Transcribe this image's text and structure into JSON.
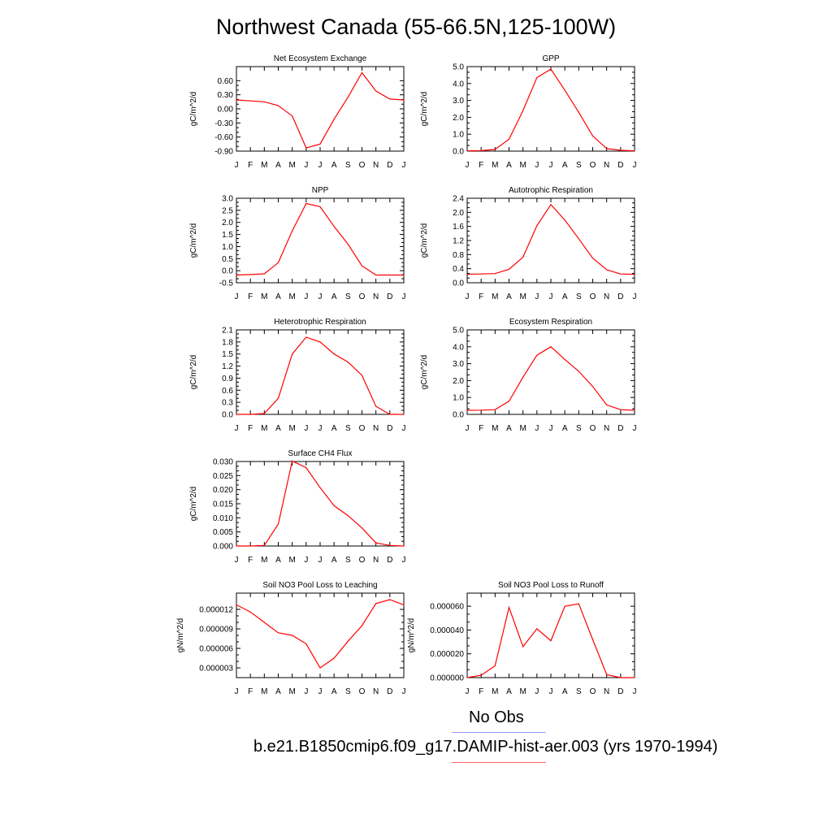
{
  "page": {
    "title": "Northwest Canada (55-66.5N,125-100W)"
  },
  "legend": {
    "obs_label": "No Obs",
    "model_label": "b.e21.B1850cmip6.f09_g17.DAMIP-hist-aer.003 (yrs 1970-1994)",
    "obs_color": "#9999ff",
    "model_color": "#ff6666"
  },
  "colors": {
    "series": "#ff0000",
    "axis": "#000000"
  },
  "chart_data": [
    {
      "type": "line",
      "title": "Net Ecosystem Exchange",
      "ylabel": "gC/m^2/d",
      "categories": [
        "J",
        "F",
        "M",
        "A",
        "M",
        "J",
        "J",
        "A",
        "S",
        "O",
        "N",
        "D",
        "J"
      ],
      "ylim": [
        -0.9,
        0.9
      ],
      "yticks": [
        "0.60",
        "0.30",
        "0.00",
        "-0.30",
        "-0.60",
        "-0.90"
      ],
      "ytick_values": [
        0.6,
        0.3,
        0.0,
        -0.3,
        -0.6,
        -0.9
      ],
      "values": [
        0.19,
        0.17,
        0.15,
        0.07,
        -0.15,
        -0.83,
        -0.75,
        -0.22,
        0.25,
        0.77,
        0.38,
        0.21,
        0.19
      ]
    },
    {
      "type": "line",
      "title": "GPP",
      "ylabel": "gC/m^2/d",
      "categories": [
        "J",
        "F",
        "M",
        "A",
        "M",
        "J",
        "J",
        "A",
        "S",
        "O",
        "N",
        "D",
        "J"
      ],
      "ylim": [
        0,
        5
      ],
      "yticks": [
        "5.0",
        "4.0",
        "3.0",
        "2.0",
        "1.0",
        "0.0"
      ],
      "ytick_values": [
        5,
        4,
        3,
        2,
        1,
        0
      ],
      "values": [
        0.02,
        0.03,
        0.1,
        0.7,
        2.4,
        4.35,
        4.85,
        3.6,
        2.3,
        0.9,
        0.15,
        0.05,
        0.02
      ]
    },
    {
      "type": "line",
      "title": "NPP",
      "ylabel": "gC/m^2/d",
      "categories": [
        "J",
        "F",
        "M",
        "A",
        "M",
        "J",
        "J",
        "A",
        "S",
        "O",
        "N",
        "D",
        "J"
      ],
      "ylim": [
        -0.5,
        3.0
      ],
      "yticks": [
        "3.0",
        "2.5",
        "2.0",
        "1.5",
        "1.0",
        "0.5",
        "0.0",
        "-0.5"
      ],
      "ytick_values": [
        3,
        2.5,
        2,
        1.5,
        1,
        0.5,
        0,
        -0.5
      ],
      "values": [
        -0.18,
        -0.16,
        -0.13,
        0.33,
        1.65,
        2.78,
        2.65,
        1.83,
        1.1,
        0.2,
        -0.18,
        -0.18,
        -0.18
      ]
    },
    {
      "type": "line",
      "title": "Autotrophic Respiration",
      "ylabel": "gC/m^2/d",
      "categories": [
        "J",
        "F",
        "M",
        "A",
        "M",
        "J",
        "J",
        "A",
        "S",
        "O",
        "N",
        "D",
        "J"
      ],
      "ylim": [
        0,
        2.4
      ],
      "yticks": [
        "2.4",
        "2.0",
        "1.6",
        "1.2",
        "0.8",
        "0.4",
        "0.0"
      ],
      "ytick_values": [
        2.4,
        2.0,
        1.6,
        1.2,
        0.8,
        0.4,
        0.0
      ],
      "values": [
        0.24,
        0.25,
        0.26,
        0.38,
        0.73,
        1.62,
        2.22,
        1.78,
        1.25,
        0.7,
        0.37,
        0.25,
        0.24
      ]
    },
    {
      "type": "line",
      "title": "Heterotrophic Respiration",
      "ylabel": "gC/m^2/d",
      "categories": [
        "J",
        "F",
        "M",
        "A",
        "M",
        "J",
        "J",
        "A",
        "S",
        "O",
        "N",
        "D",
        "J"
      ],
      "ylim": [
        0,
        2.1
      ],
      "yticks": [
        "2.1",
        "1.8",
        "1.5",
        "1.2",
        "0.9",
        "0.6",
        "0.3",
        "0.0"
      ],
      "ytick_values": [
        2.1,
        1.8,
        1.5,
        1.2,
        0.9,
        0.6,
        0.3,
        0.0
      ],
      "values": [
        0.0,
        0.0,
        0.02,
        0.4,
        1.5,
        1.92,
        1.8,
        1.5,
        1.3,
        0.97,
        0.2,
        0.0,
        0.0
      ]
    },
    {
      "type": "line",
      "title": "Ecosystem Respiration",
      "ylabel": "gC/m^2/d",
      "categories": [
        "J",
        "F",
        "M",
        "A",
        "M",
        "J",
        "J",
        "A",
        "S",
        "O",
        "N",
        "D",
        "J"
      ],
      "ylim": [
        0,
        5
      ],
      "yticks": [
        "5.0",
        "4.0",
        "3.0",
        "2.0",
        "1.0",
        "0.0"
      ],
      "ytick_values": [
        5,
        4,
        3,
        2,
        1,
        0
      ],
      "values": [
        0.24,
        0.25,
        0.28,
        0.78,
        2.2,
        3.5,
        4.0,
        3.25,
        2.55,
        1.65,
        0.56,
        0.28,
        0.24
      ]
    },
    {
      "type": "line",
      "title": "Surface CH4 Flux",
      "ylabel": "gC/m^2/d",
      "categories": [
        "J",
        "F",
        "M",
        "A",
        "M",
        "J",
        "J",
        "A",
        "S",
        "O",
        "N",
        "D",
        "J"
      ],
      "ylim": [
        0,
        0.03
      ],
      "yticks": [
        "0.030",
        "0.025",
        "0.020",
        "0.015",
        "0.010",
        "0.005",
        "0.000"
      ],
      "ytick_values": [
        0.03,
        0.025,
        0.02,
        0.015,
        0.01,
        0.005,
        0.0
      ],
      "values": [
        0.0,
        0.0,
        0.0002,
        0.0078,
        0.0302,
        0.0278,
        0.0207,
        0.0143,
        0.0108,
        0.0064,
        0.0011,
        0.0002,
        0.0
      ]
    },
    {
      "type": "line",
      "title": "Soil NO3 Pool Loss to Leaching",
      "ylabel": "gN/m^2/d",
      "categories": [
        "J",
        "F",
        "M",
        "A",
        "M",
        "J",
        "J",
        "A",
        "S",
        "O",
        "N",
        "D",
        "J"
      ],
      "ylim": [
        1.5e-06,
        1.45e-05
      ],
      "yticks": [
        "0.000012",
        "0.000009",
        "0.000006",
        "0.000003"
      ],
      "ytick_values": [
        1.2e-05,
        9e-06,
        6e-06,
        3e-06
      ],
      "values": [
        1.27e-05,
        1.16e-05,
        1e-05,
        8.4e-06,
        8e-06,
        6.7e-06,
        3e-06,
        4.5e-06,
        7.1e-06,
        9.5e-06,
        1.29e-05,
        1.35e-05,
        1.27e-05
      ]
    },
    {
      "type": "line",
      "title": "Soil NO3 Pool Loss to Runoff",
      "ylabel": "gN/m^2/d",
      "categories": [
        "J",
        "F",
        "M",
        "A",
        "M",
        "J",
        "J",
        "A",
        "S",
        "O",
        "N",
        "D",
        "J"
      ],
      "ylim": [
        0,
        7.1e-05
      ],
      "yticks": [
        "0.000060",
        "0.000040",
        "0.000020",
        "0.000000"
      ],
      "ytick_values": [
        6e-05,
        4e-05,
        2e-05,
        0.0
      ],
      "values": [
        0.0,
        2e-06,
        1e-05,
        5.9e-05,
        2.6e-05,
        4.1e-05,
        3.1e-05,
        6e-05,
        6.2e-05,
        3.2e-05,
        2.5e-06,
        0.0,
        0.0
      ]
    }
  ]
}
